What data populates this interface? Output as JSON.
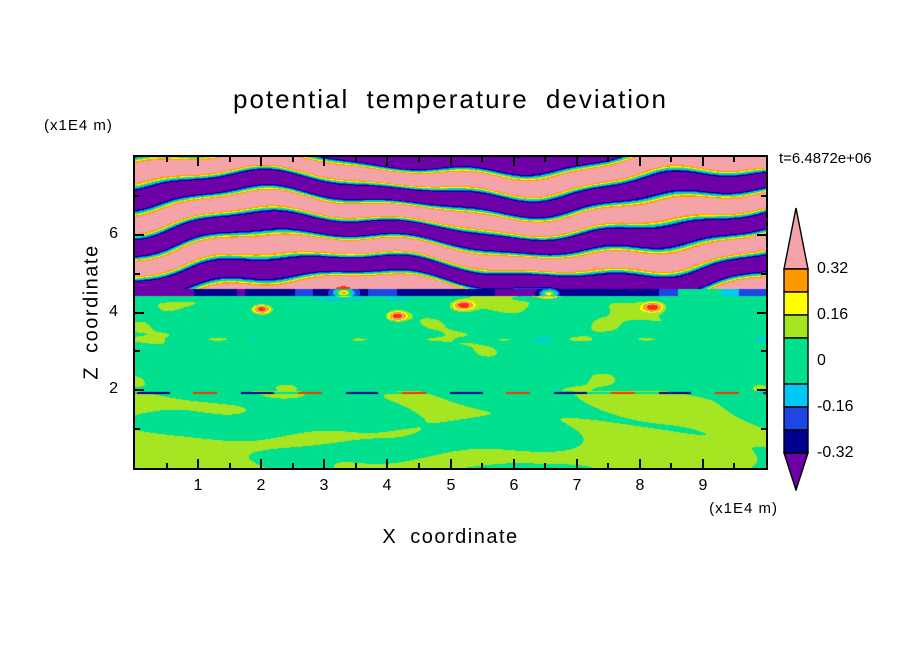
{
  "figure": {
    "title": "potential temperature deviation",
    "time_label": "t=6.4872e+06",
    "x_axis": {
      "label": "X coordinate",
      "unit": "(x1E4 m)",
      "ticks": [
        "1",
        "2",
        "3",
        "4",
        "5",
        "6",
        "7",
        "8",
        "9"
      ]
    },
    "z_axis": {
      "label": "Z coordinate",
      "unit": "(x1E4 m)",
      "ticks": [
        "2",
        "4",
        "6"
      ]
    }
  },
  "colorbar": {
    "labels": [
      "0.32",
      "0.16",
      "0",
      "-0.16",
      "-0.32"
    ],
    "segments": [
      "#ff9800",
      "#ffff00",
      "#a5e522",
      "#00e08e",
      "#00c8f5",
      "#1e46e6",
      "#000090"
    ],
    "arrow_top": "#f4a4a8",
    "arrow_bottom": "#6e00a8"
  },
  "chart_data": {
    "type": "heatmap",
    "title": "potential temperature deviation",
    "xlabel": "X coordinate",
    "ylabel": "Z coordinate",
    "x_unit": "x1E4 m",
    "z_unit": "x1E4 m",
    "time": "t=6.4872e+06",
    "xlim": [
      0,
      10
    ],
    "zlim": [
      0,
      8
    ],
    "x_ticks": [
      1,
      2,
      3,
      4,
      5,
      6,
      7,
      8,
      9
    ],
    "z_ticks": [
      2,
      4,
      6
    ],
    "colorbar_ticks": [
      0.32,
      0.16,
      0,
      -0.16,
      -0.32
    ],
    "contour_interval": 0.08,
    "palette": [
      {
        "min": 0.42,
        "color": "#ff3000",
        "name": "red"
      },
      {
        "min": 0.32,
        "color": "#f4a4a8",
        "name": "pink"
      },
      {
        "min": 0.24,
        "color": "#ff9800",
        "name": "orange"
      },
      {
        "min": 0.16,
        "color": "#ffff00",
        "name": "yellow"
      },
      {
        "min": 0.08,
        "color": "#a5e522",
        "name": "green-yellow"
      },
      {
        "min": -0.08,
        "color": "#00e08e",
        "name": "spring-green"
      },
      {
        "min": -0.16,
        "color": "#00c8f5",
        "name": "cyan"
      },
      {
        "min": -0.24,
        "color": "#1e46e6",
        "name": "blue"
      },
      {
        "min": -0.32,
        "color": "#000090",
        "name": "navy"
      },
      {
        "min": -9,
        "color": "#6e00a8",
        "name": "purple"
      }
    ],
    "regions": [
      {
        "z_range": [
          4.6,
          8.0
        ],
        "description": "stratified gravity-wave bands alternating strong positive (pink, >0.32) and strong negative (purple, <-0.32) deviation with thin multicolor fringes at band edges"
      },
      {
        "z_range": [
          4.4,
          4.6
        ],
        "description": "thin strongly negative (navy, ~-0.3) horizontal layer spanning most of the domain"
      },
      {
        "z_range": [
          2.0,
          4.4
        ],
        "description": "near-zero (spring green) layer with weak positive green-yellow speckles and cyan streaks near its top"
      },
      {
        "z_range": [
          0.0,
          2.0
        ],
        "description": "convective blobs alternating weakly positive (green-yellow, ~0.1) and near-zero (spring green), with a thin perturbed line of strong dashes near z=1.95"
      }
    ]
  }
}
